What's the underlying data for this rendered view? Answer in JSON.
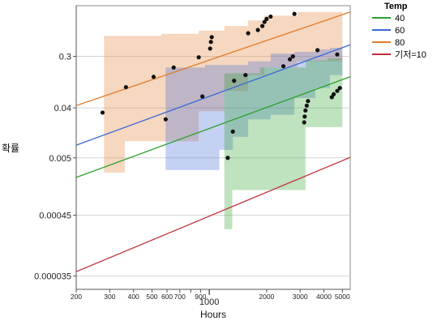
{
  "chart_data": {
    "type": "scatter",
    "title": "",
    "xlabel": "Hours",
    "ylabel": "확률",
    "x_scale": "log",
    "y_scale": "weibull",
    "xlim": [
      200,
      5500
    ],
    "ylim": [
      2e-05,
      0.95
    ],
    "grid": true,
    "legend_placement": "right",
    "legend_title": "Temp",
    "x_ticks_minor": [
      {
        "value": 200,
        "label": "200"
      },
      {
        "value": 300,
        "label": "300"
      },
      {
        "value": 400,
        "label": "400"
      },
      {
        "value": 500,
        "label": "500"
      },
      {
        "value": 600,
        "label": "600"
      },
      {
        "value": 700,
        "label": "700"
      },
      {
        "value": 900,
        "label": "900"
      },
      {
        "value": 2000,
        "label": "2000"
      },
      {
        "value": 3000,
        "label": "3000"
      },
      {
        "value": 4000,
        "label": "4000"
      },
      {
        "value": 5000,
        "label": "5000"
      }
    ],
    "x_tick_major": {
      "value": 1000,
      "label": "1000"
    },
    "y_ticks": [
      {
        "value": 0.3,
        "label": "0.3"
      },
      {
        "value": 0.04,
        "label": "0.04"
      },
      {
        "value": 0.005,
        "label": "0.005"
      },
      {
        "value": 0.00045,
        "label": "0.00045"
      },
      {
        "value": 3.5e-05,
        "label": "0.000035"
      }
    ],
    "series": [
      {
        "name": "40",
        "color": "#2ca02c",
        "fit_line": [
          [
            200,
            0.0022
          ],
          [
            5500,
            0.1405
          ]
        ],
        "band": [
          [
            1200,
            0.00025,
            0.16
          ],
          [
            1320,
            0.0013,
            0.16
          ],
          [
            1850,
            0.0013,
            0.2
          ],
          [
            3200,
            0.018,
            0.26
          ],
          [
            4200,
            0.018,
            0.28
          ],
          [
            5000,
            0.018,
            0.3
          ],
          [
            5000,
            0.018,
            0.3
          ]
        ],
        "points": [
          [
            1250,
            0.005
          ],
          [
            1330,
            0.015
          ],
          [
            3150,
            0.022
          ],
          [
            3170,
            0.028
          ],
          [
            3200,
            0.036
          ],
          [
            3250,
            0.044
          ],
          [
            3300,
            0.053
          ],
          [
            4400,
            0.062
          ],
          [
            4500,
            0.07
          ],
          [
            4700,
            0.08
          ],
          [
            4850,
            0.09
          ]
        ]
      },
      {
        "name": "60",
        "color": "#3a68d6",
        "fit_line": [
          [
            200,
            0.0085
          ],
          [
            5500,
            0.44
          ]
        ],
        "band": [
          [
            590,
            0.003,
            0.2
          ],
          [
            950,
            0.003,
            0.2
          ],
          [
            950,
            0.003,
            0.22
          ],
          [
            1130,
            0.007,
            0.22
          ],
          [
            1330,
            0.012,
            0.22
          ],
          [
            1600,
            0.025,
            0.25
          ],
          [
            2100,
            0.03,
            0.33
          ],
          [
            2800,
            0.06,
            0.35
          ],
          [
            3600,
            0.09,
            0.38
          ],
          [
            4300,
            0.15,
            0.4
          ],
          [
            5000,
            0.15,
            0.42
          ],
          [
            5000,
            0.15,
            0.42
          ]
        ],
        "points": [
          [
            590,
            0.025
          ],
          [
            920,
            0.064
          ],
          [
            1350,
            0.12
          ],
          [
            1550,
            0.15
          ],
          [
            2450,
            0.21
          ],
          [
            2650,
            0.27
          ],
          [
            2750,
            0.3
          ]
        ]
      },
      {
        "name": "80",
        "color": "#e07b2a",
        "fit_line": [
          [
            200,
            0.044
          ],
          [
            5500,
            0.9
          ]
        ],
        "band": [
          [
            280,
            0.0027,
            0.57
          ],
          [
            360,
            0.01,
            0.57
          ],
          [
            560,
            0.01,
            0.6
          ],
          [
            880,
            0.035,
            0.65
          ],
          [
            1200,
            0.08,
            0.72
          ],
          [
            1600,
            0.15,
            0.8
          ],
          [
            1950,
            0.2,
            0.86
          ],
          [
            2900,
            0.25,
            0.9
          ],
          [
            5000,
            0.25,
            0.93
          ],
          [
            5000,
            0.25,
            0.93
          ]
        ],
        "points": [
          [
            275,
            0.033
          ],
          [
            365,
            0.093
          ],
          [
            510,
            0.14
          ],
          [
            650,
            0.2
          ],
          [
            880,
            0.29
          ],
          [
            1010,
            0.39
          ],
          [
            1020,
            0.48
          ],
          [
            1030,
            0.55
          ],
          [
            1600,
            0.61
          ],
          [
            1800,
            0.66
          ],
          [
            1900,
            0.72
          ],
          [
            1950,
            0.78
          ],
          [
            2000,
            0.82
          ],
          [
            2100,
            0.85
          ],
          [
            2800,
            0.88
          ],
          [
            3700,
            0.37
          ],
          [
            4700,
            0.32
          ]
        ]
      },
      {
        "name": "기저=10",
        "color": "#c0303a",
        "fit_line": [
          [
            200,
            4.2e-05
          ],
          [
            5500,
            0.0051
          ]
        ],
        "points": []
      }
    ]
  }
}
